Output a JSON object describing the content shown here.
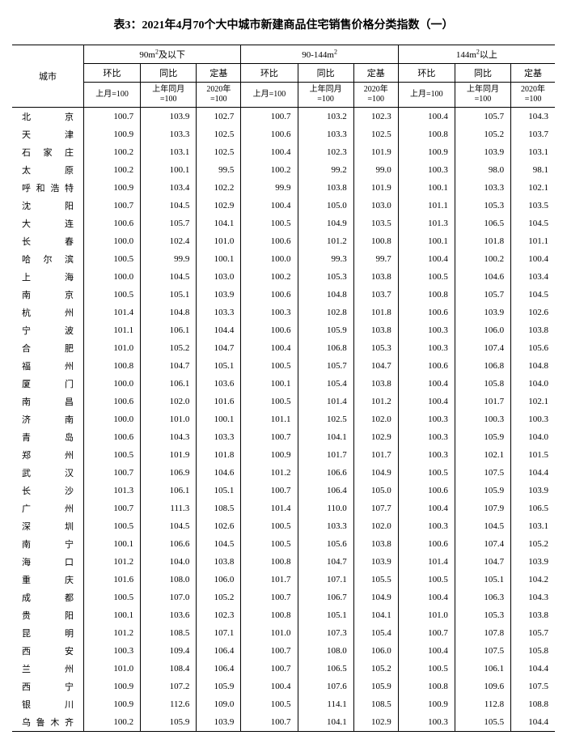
{
  "title": "表3：2021年4月70个大中城市新建商品住宅销售价格分类指数（一）",
  "header": {
    "city": "城市",
    "groups": [
      "90m²及以下",
      "90-144m²",
      "144m²以上"
    ],
    "cols": [
      "环比",
      "同比",
      "定基"
    ],
    "sub": [
      "上月=100",
      "上年同月=100",
      "2020年=100"
    ]
  },
  "style": {
    "background_color": "#ffffff",
    "text_color": "#000000",
    "border_color": "#000000",
    "title_fontsize": 14,
    "body_fontsize": 11,
    "col_city_width": 70,
    "col_num_width": 62
  },
  "rows": [
    {
      "city": "北　　京",
      "v": [
        100.7,
        103.9,
        102.7,
        100.7,
        103.2,
        102.3,
        100.4,
        105.7,
        104.3
      ]
    },
    {
      "city": "天　　津",
      "v": [
        100.9,
        103.3,
        102.5,
        100.6,
        103.3,
        102.5,
        100.8,
        105.2,
        103.7
      ]
    },
    {
      "city": "石 家 庄",
      "v": [
        100.2,
        103.1,
        102.5,
        100.4,
        102.3,
        101.9,
        100.9,
        103.9,
        103.1
      ]
    },
    {
      "city": "太　　原",
      "v": [
        100.2,
        100.1,
        99.5,
        100.2,
        99.2,
        99.0,
        100.3,
        98.0,
        98.1
      ]
    },
    {
      "city": "呼和浩特",
      "v": [
        100.9,
        103.4,
        102.2,
        99.9,
        103.8,
        101.9,
        100.1,
        103.3,
        102.1
      ]
    },
    {
      "city": "沈　　阳",
      "v": [
        100.7,
        104.5,
        102.9,
        100.4,
        105.0,
        103.0,
        101.1,
        105.3,
        103.5
      ]
    },
    {
      "city": "大　　连",
      "v": [
        100.6,
        105.7,
        104.1,
        100.5,
        104.9,
        103.5,
        101.3,
        106.5,
        104.5
      ]
    },
    {
      "city": "长　　春",
      "v": [
        100.0,
        102.4,
        101.0,
        100.6,
        101.2,
        100.8,
        100.1,
        101.8,
        101.1
      ]
    },
    {
      "city": "哈 尔 滨",
      "v": [
        100.5,
        99.9,
        100.1,
        100.0,
        99.3,
        99.7,
        100.4,
        100.2,
        100.4
      ]
    },
    {
      "city": "上　　海",
      "v": [
        100.0,
        104.5,
        103.0,
        100.2,
        105.3,
        103.8,
        100.5,
        104.6,
        103.4
      ]
    },
    {
      "city": "南　　京",
      "v": [
        100.5,
        105.1,
        103.9,
        100.6,
        104.8,
        103.7,
        100.8,
        105.7,
        104.5
      ]
    },
    {
      "city": "杭　　州",
      "v": [
        101.4,
        104.8,
        103.3,
        100.3,
        102.8,
        101.8,
        100.6,
        103.9,
        102.6
      ]
    },
    {
      "city": "宁　　波",
      "v": [
        101.1,
        106.1,
        104.4,
        100.6,
        105.9,
        103.8,
        100.3,
        106.0,
        103.8
      ]
    },
    {
      "city": "合　　肥",
      "v": [
        101.0,
        105.2,
        104.7,
        100.4,
        106.8,
        105.3,
        100.3,
        107.4,
        105.6
      ]
    },
    {
      "city": "福　　州",
      "v": [
        100.8,
        104.7,
        105.1,
        100.5,
        105.7,
        104.7,
        100.6,
        106.8,
        104.8
      ]
    },
    {
      "city": "厦　　门",
      "v": [
        100.0,
        106.1,
        103.6,
        100.1,
        105.4,
        103.8,
        100.4,
        105.8,
        104.0
      ]
    },
    {
      "city": "南　　昌",
      "v": [
        100.6,
        102.0,
        101.6,
        100.5,
        101.4,
        101.2,
        100.4,
        101.7,
        102.1
      ]
    },
    {
      "city": "济　　南",
      "v": [
        100.0,
        101.0,
        100.1,
        101.1,
        102.5,
        102.0,
        100.3,
        100.3,
        100.3
      ]
    },
    {
      "city": "青　　岛",
      "v": [
        100.6,
        104.3,
        103.3,
        100.7,
        104.1,
        102.9,
        100.3,
        105.9,
        104.0
      ]
    },
    {
      "city": "郑　　州",
      "v": [
        100.5,
        101.9,
        101.8,
        100.9,
        101.7,
        101.7,
        100.3,
        102.1,
        101.5
      ]
    },
    {
      "city": "武　　汉",
      "v": [
        100.7,
        106.9,
        104.6,
        101.2,
        106.6,
        104.9,
        100.5,
        107.5,
        104.4
      ]
    },
    {
      "city": "长　　沙",
      "v": [
        101.3,
        106.1,
        105.1,
        100.7,
        106.4,
        105.0,
        100.6,
        105.9,
        103.9
      ]
    },
    {
      "city": "广　　州",
      "v": [
        100.7,
        111.3,
        108.5,
        101.4,
        110.0,
        107.7,
        100.4,
        107.9,
        106.5
      ]
    },
    {
      "city": "深　　圳",
      "v": [
        100.5,
        104.5,
        102.6,
        100.5,
        103.3,
        102.0,
        100.3,
        104.5,
        103.1
      ]
    },
    {
      "city": "南　　宁",
      "v": [
        100.1,
        106.6,
        104.5,
        100.5,
        105.6,
        103.8,
        100.6,
        107.4,
        105.2
      ]
    },
    {
      "city": "海　　口",
      "v": [
        101.2,
        104.0,
        103.8,
        100.8,
        104.7,
        103.9,
        101.4,
        104.7,
        103.9
      ]
    },
    {
      "city": "重　　庆",
      "v": [
        101.6,
        108.0,
        106.0,
        101.7,
        107.1,
        105.5,
        100.5,
        105.1,
        104.2
      ]
    },
    {
      "city": "成　　都",
      "v": [
        100.5,
        107.0,
        105.2,
        100.7,
        106.7,
        104.9,
        100.4,
        106.3,
        104.3
      ]
    },
    {
      "city": "贵　　阳",
      "v": [
        100.1,
        103.6,
        102.3,
        100.8,
        105.1,
        104.1,
        101.0,
        105.3,
        103.8
      ]
    },
    {
      "city": "昆　　明",
      "v": [
        101.2,
        108.5,
        107.1,
        101.0,
        107.3,
        105.4,
        100.7,
        107.8,
        105.7
      ]
    },
    {
      "city": "西　　安",
      "v": [
        100.3,
        109.4,
        106.4,
        100.7,
        108.0,
        106.0,
        100.4,
        107.5,
        105.8
      ]
    },
    {
      "city": "兰　　州",
      "v": [
        101.0,
        108.4,
        106.4,
        100.7,
        106.5,
        105.2,
        100.5,
        106.1,
        104.4
      ]
    },
    {
      "city": "西　　宁",
      "v": [
        100.9,
        107.2,
        105.9,
        100.4,
        107.6,
        105.9,
        100.8,
        109.6,
        107.5
      ]
    },
    {
      "city": "银　　川",
      "v": [
        100.9,
        112.6,
        109.0,
        100.5,
        114.1,
        108.5,
        100.9,
        112.8,
        108.8
      ]
    },
    {
      "city": "乌鲁木齐",
      "v": [
        100.2,
        105.9,
        103.9,
        100.7,
        104.1,
        102.9,
        100.3,
        105.5,
        104.4
      ]
    }
  ]
}
